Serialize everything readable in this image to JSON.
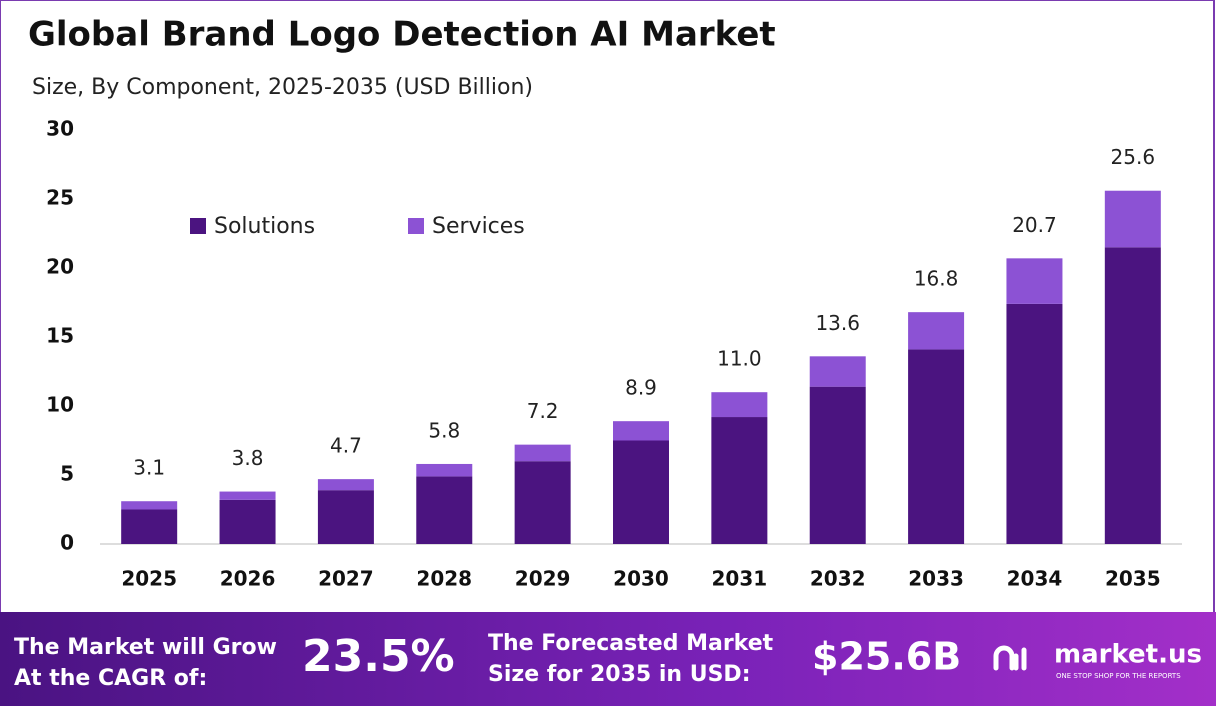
{
  "chart_data": {
    "type": "stacked-bar",
    "title": "Global Brand Logo Detection AI Market",
    "subtitle": "Size, By Component, 2025-2035 (USD Billion)",
    "categories": [
      "2025",
      "2026",
      "2027",
      "2028",
      "2029",
      "2030",
      "2031",
      "2032",
      "2033",
      "2034",
      "2035"
    ],
    "series": [
      {
        "name": "Solutions",
        "color": "#4b1480",
        "values": [
          2.5,
          3.2,
          3.9,
          4.9,
          6.0,
          7.5,
          9.2,
          11.4,
          14.1,
          17.4,
          21.5
        ]
      },
      {
        "name": "Services",
        "color": "#8c52d4",
        "values": [
          0.6,
          0.6,
          0.8,
          0.9,
          1.2,
          1.4,
          1.8,
          2.2,
          2.7,
          3.3,
          4.1
        ]
      }
    ],
    "totals": [
      3.1,
      3.8,
      4.7,
      5.8,
      7.2,
      8.9,
      11,
      13.6,
      16.8,
      20.7,
      25.6
    ],
    "total_labels": [
      "3.1",
      "3.8",
      "4.7",
      "5.8",
      "7.2",
      "8.9",
      "11.0",
      "13.6",
      "16.8",
      "20.7",
      "25.6"
    ],
    "ylim": [
      0,
      30
    ],
    "yticks": [
      0,
      5,
      10,
      15,
      20,
      25,
      30
    ],
    "grid": false,
    "legend": "top-left"
  },
  "footer": {
    "cagr_text": [
      "The Market will Grow",
      "At the CAGR of:"
    ],
    "cagr_value": "23.5%",
    "forecast_text": [
      "The Forecasted Market",
      "Size for 2035 in USD:"
    ],
    "forecast_value": "$25.6B",
    "brand": "market.us",
    "tagline": "ONE STOP SHOP FOR THE REPORTS"
  }
}
